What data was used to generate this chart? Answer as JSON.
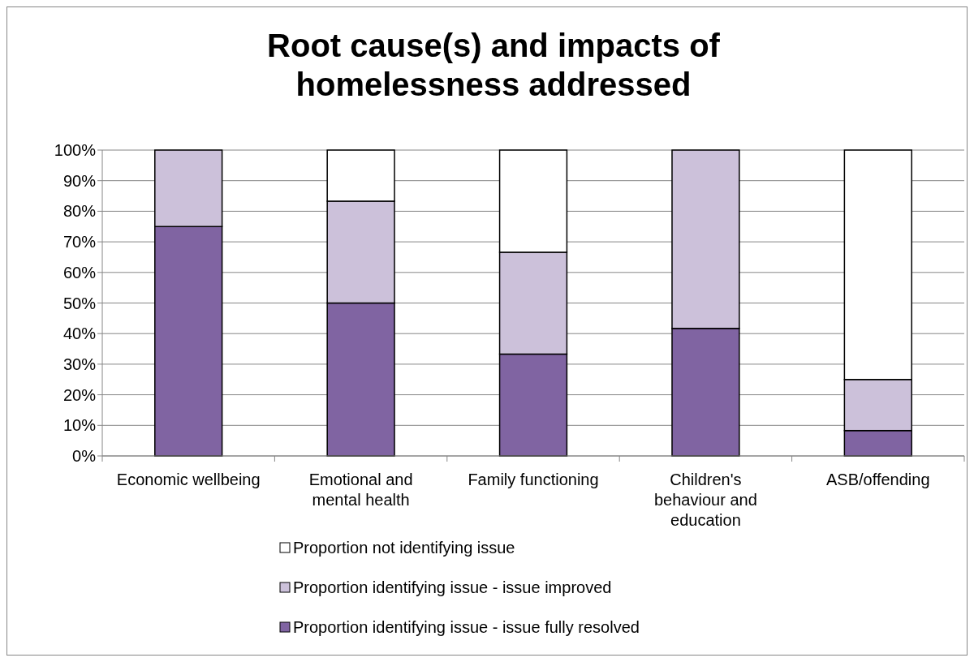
{
  "chart_data": {
    "type": "bar",
    "title": "Root cause(s) and impacts of homelessness addressed",
    "categories": [
      "Economic wellbeing",
      "Emotional and mental health",
      "Family functioning",
      "Children's behaviour and education",
      "ASB/offending"
    ],
    "stacked": true,
    "series": [
      {
        "name": "Proportion identifying issue - issue fully resolved",
        "color": "#8064a2",
        "values": [
          75,
          50,
          33.3,
          41.7,
          8.3
        ]
      },
      {
        "name": "Proportion identifying issue - issue improved",
        "color": "#ccc1da",
        "values": [
          25,
          33.3,
          33.3,
          58.3,
          16.7
        ]
      },
      {
        "name": "Proportion not identifying issue",
        "color": "#ffffff",
        "values": [
          0,
          16.7,
          33.4,
          0,
          75
        ]
      }
    ],
    "ylim": [
      0,
      100
    ],
    "yticks": [
      {
        "value": 0,
        "label": "0%"
      },
      {
        "value": 10,
        "label": "10%"
      },
      {
        "value": 20,
        "label": "20%"
      },
      {
        "value": 30,
        "label": "30%"
      },
      {
        "value": 40,
        "label": "40%"
      },
      {
        "value": 50,
        "label": "50%"
      },
      {
        "value": 60,
        "label": "60%"
      },
      {
        "value": 70,
        "label": "70%"
      },
      {
        "value": 80,
        "label": "80%"
      },
      {
        "value": 90,
        "label": "90%"
      },
      {
        "value": 100,
        "label": "100%"
      }
    ],
    "grid": "y",
    "legend": "bottom"
  }
}
